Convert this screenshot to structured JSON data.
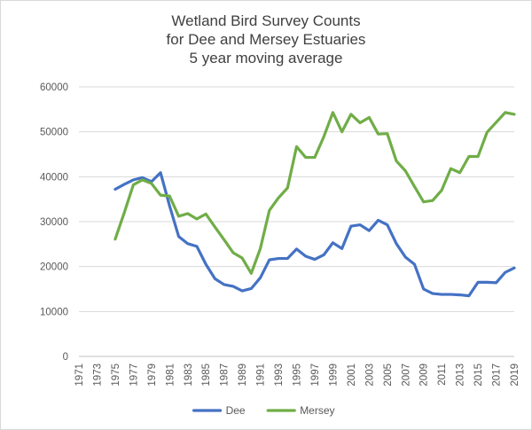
{
  "chart_data": {
    "type": "line",
    "title_lines": [
      "Wetland Bird Survey Counts",
      "for Dee and Mersey Estuaries",
      "5 year moving average"
    ],
    "xlabel": "",
    "ylabel": "",
    "ylim": [
      0,
      60000
    ],
    "yticks": [
      "0",
      "10000",
      "20000",
      "30000",
      "40000",
      "50000",
      "60000"
    ],
    "x": [
      1971,
      1972,
      1973,
      1974,
      1975,
      1976,
      1977,
      1978,
      1979,
      1980,
      1981,
      1982,
      1983,
      1984,
      1985,
      1986,
      1987,
      1988,
      1989,
      1990,
      1991,
      1992,
      1993,
      1994,
      1995,
      1996,
      1997,
      1998,
      1999,
      2000,
      2001,
      2002,
      2003,
      2004,
      2005,
      2006,
      2007,
      2008,
      2009,
      2010,
      2011,
      2012,
      2013,
      2014,
      2015,
      2016,
      2017,
      2018,
      2019
    ],
    "xtick_labels": [
      "1971",
      "1973",
      "1975",
      "1977",
      "1979",
      "1981",
      "1983",
      "1985",
      "1987",
      "1989",
      "1991",
      "1993",
      "1995",
      "1997",
      "1999",
      "2001",
      "2003",
      "2005",
      "2007",
      "2009",
      "2011",
      "2013",
      "2015",
      "2017",
      "2019"
    ],
    "grid": true,
    "legend_position": "bottom",
    "series": [
      {
        "name": "Dee",
        "color": "#4472C4",
        "values": [
          null,
          null,
          null,
          null,
          37200,
          38300,
          39300,
          39800,
          38900,
          40900,
          33500,
          26700,
          25100,
          24500,
          20500,
          17300,
          16000,
          15600,
          14600,
          15100,
          17500,
          21500,
          21800,
          21800,
          23900,
          22300,
          21600,
          22600,
          25300,
          24000,
          29000,
          29300,
          28000,
          30300,
          29300,
          25100,
          22100,
          20500,
          15000,
          14000,
          13800,
          13800,
          13700,
          13500,
          16500,
          16500,
          16400,
          18700,
          19700
        ]
      },
      {
        "name": "Mersey",
        "color": "#70AD47",
        "values": [
          null,
          null,
          null,
          null,
          26100,
          32000,
          38200,
          39300,
          38500,
          35900,
          35700,
          31200,
          31800,
          30600,
          31700,
          28800,
          26000,
          23100,
          21900,
          18500,
          24000,
          32500,
          35300,
          37500,
          46700,
          44300,
          44300,
          48900,
          54300,
          50000,
          53900,
          52000,
          53200,
          49500,
          49600,
          43500,
          41300,
          37800,
          34400,
          34700,
          37000,
          41800,
          40900,
          44500,
          44500,
          49900,
          52100,
          54300,
          53900
        ]
      }
    ]
  }
}
